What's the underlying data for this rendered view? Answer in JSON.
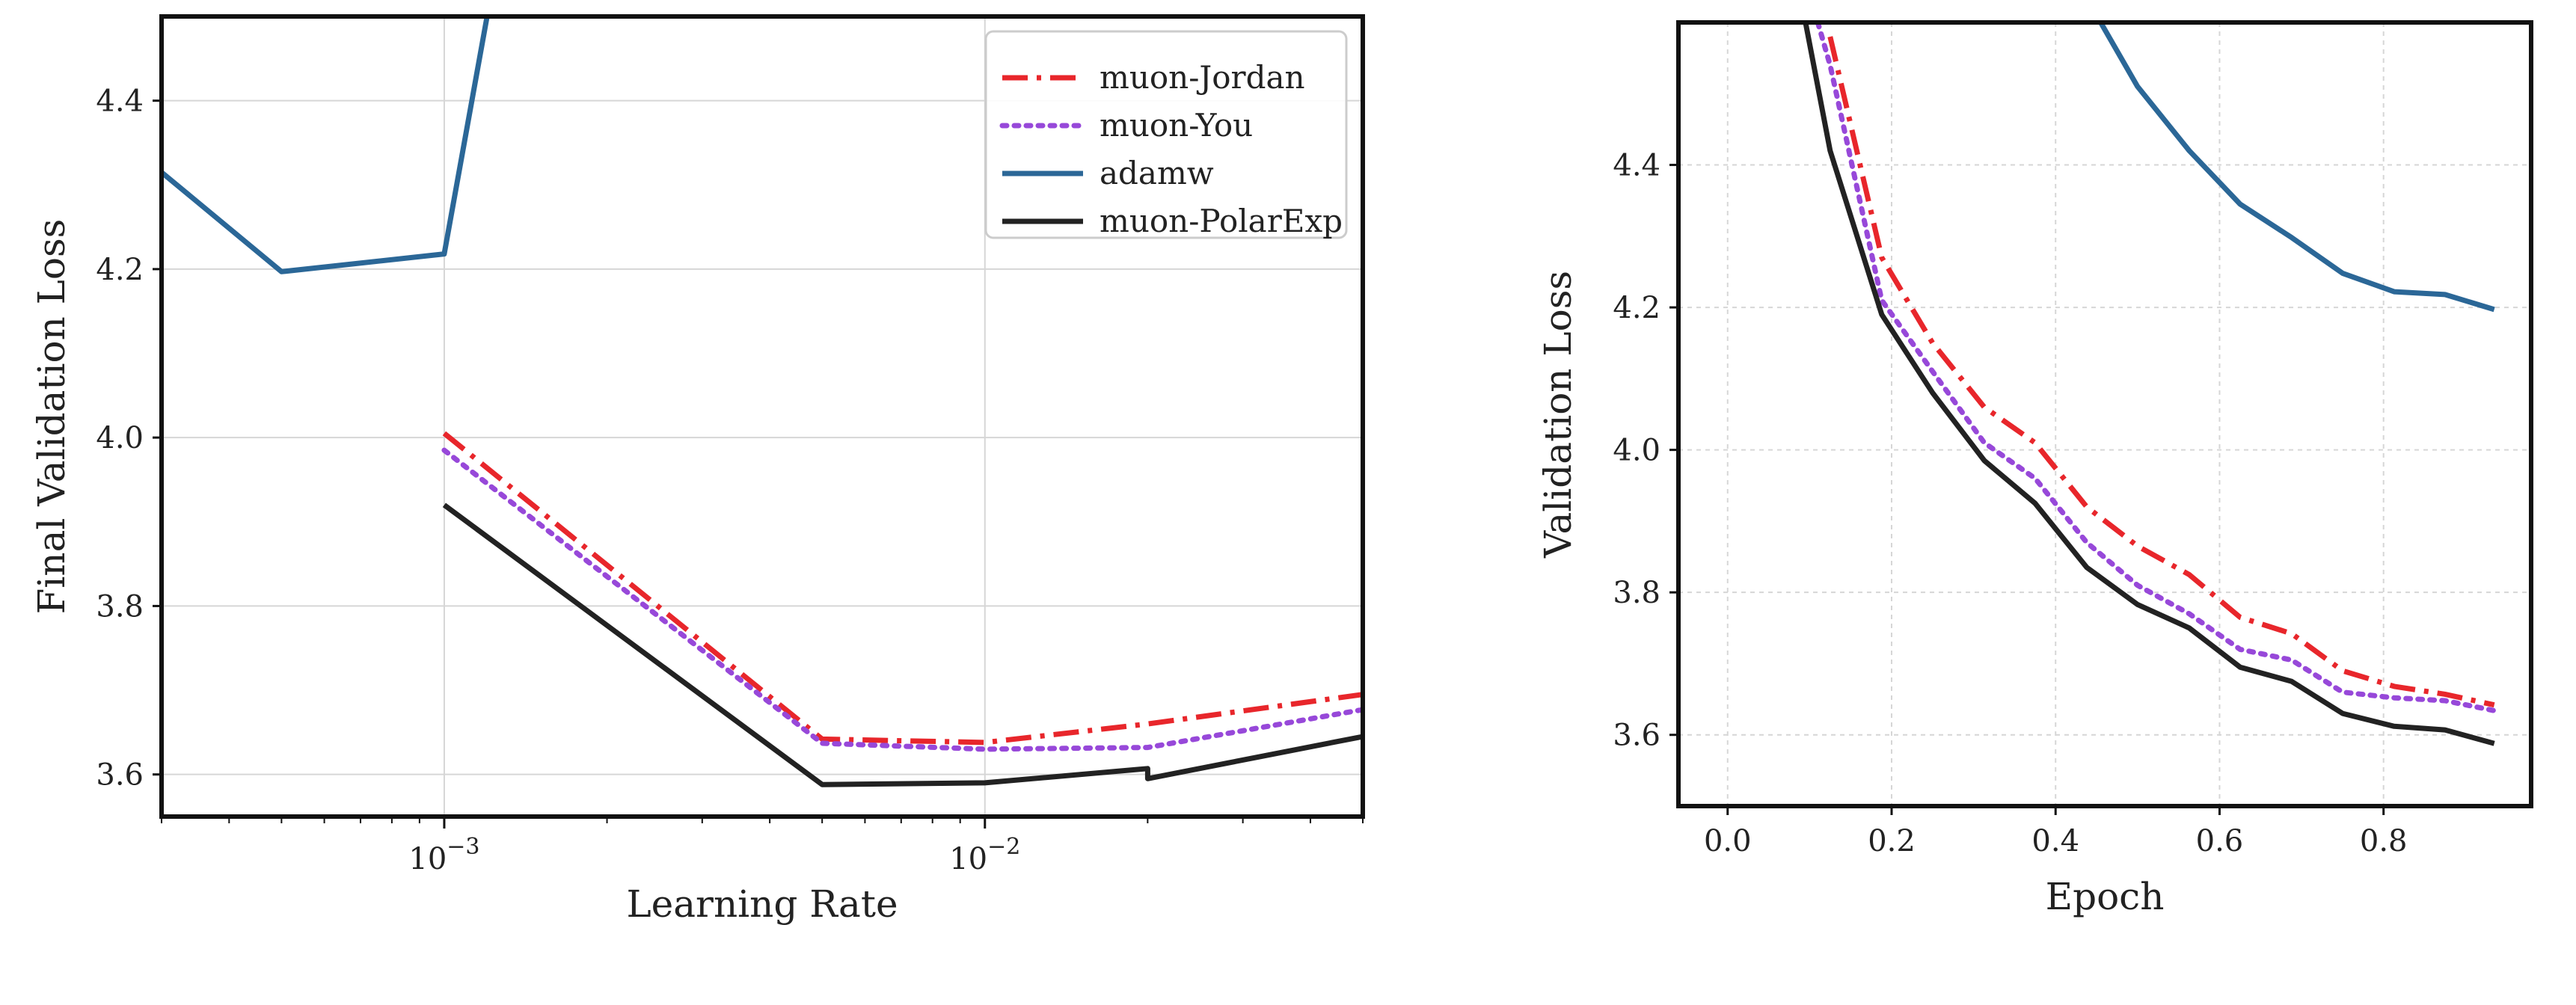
{
  "chart_data": [
    {
      "type": "line",
      "xlabel": "Learning Rate",
      "ylabel": "Final Validation Loss",
      "xscale": "log",
      "xlim": [
        0.0003,
        0.05
      ],
      "ylim": [
        3.55,
        4.5
      ],
      "grid": true,
      "legend_position": "top-right",
      "x_tick_labels": [
        "10^-3",
        "10^-2"
      ],
      "x_ticks": [
        0.001,
        0.01
      ],
      "y_ticks": [
        3.6,
        3.8,
        4.0,
        4.2,
        4.4
      ],
      "y_tick_labels": [
        "3.6",
        "3.8",
        "4.0",
        "4.2",
        "4.4"
      ],
      "series": [
        {
          "name": "muon-Jordan",
          "color": "#e8262b",
          "style": "dashdot",
          "x": [
            0.001,
            0.005,
            0.01,
            0.02,
            0.05
          ],
          "y": [
            4.005,
            3.642,
            3.638,
            3.66,
            3.695
          ]
        },
        {
          "name": "muon-You",
          "color": "#9748d9",
          "style": "dotted",
          "x": [
            0.001,
            0.005,
            0.01,
            0.02,
            0.05
          ],
          "y": [
            3.985,
            3.637,
            3.63,
            3.632,
            3.677
          ]
        },
        {
          "name": "adamw",
          "color": "#2b6797",
          "style": "solid",
          "x": [
            0.0003,
            0.0005,
            0.001,
            0.0012
          ],
          "y": [
            4.315,
            4.197,
            4.218,
            4.5
          ]
        },
        {
          "name": "muon-PolarExp",
          "color": "#222222",
          "style": "solid",
          "x": [
            0.001,
            0.005,
            0.01,
            0.02,
            0.02,
            0.05
          ],
          "y": [
            3.92,
            3.588,
            3.59,
            3.607,
            3.595,
            3.645
          ]
        }
      ]
    },
    {
      "type": "line",
      "xlabel": "Epoch",
      "ylabel": "Validation Loss",
      "xlim": [
        -0.06,
        0.98
      ],
      "ylim": [
        3.5,
        4.6
      ],
      "grid": true,
      "x_ticks": [
        0.0,
        0.2,
        0.4,
        0.6,
        0.8
      ],
      "x_tick_labels": [
        "0.0",
        "0.2",
        "0.4",
        "0.6",
        "0.8"
      ],
      "y_ticks": [
        3.6,
        3.8,
        4.0,
        4.2,
        4.4
      ],
      "y_tick_labels": [
        "3.6",
        "3.8",
        "4.0",
        "4.2",
        "4.4"
      ],
      "series": [
        {
          "name": "muon-Jordan",
          "color": "#e8262b",
          "style": "dashdot",
          "x": [
            0.125,
            0.188,
            0.25,
            0.313,
            0.375,
            0.438,
            0.5,
            0.563,
            0.625,
            0.688,
            0.75,
            0.813,
            0.875,
            0.935
          ],
          "y": [
            4.58,
            4.27,
            4.15,
            4.06,
            4.01,
            3.92,
            3.865,
            3.825,
            3.765,
            3.742,
            3.69,
            3.668,
            3.657,
            3.642
          ]
        },
        {
          "name": "muon-You",
          "color": "#9748d9",
          "style": "dotted",
          "x": [
            0.11,
            0.125,
            0.188,
            0.25,
            0.313,
            0.375,
            0.438,
            0.5,
            0.563,
            0.625,
            0.688,
            0.75,
            0.813,
            0.875,
            0.935
          ],
          "y": [
            4.6,
            4.54,
            4.21,
            4.11,
            4.01,
            3.96,
            3.87,
            3.81,
            3.77,
            3.72,
            3.705,
            3.66,
            3.652,
            3.648,
            3.634
          ]
        },
        {
          "name": "adamw",
          "color": "#2b6797",
          "style": "solid",
          "x": [
            0.455,
            0.5,
            0.563,
            0.625,
            0.688,
            0.75,
            0.813,
            0.875,
            0.935
          ],
          "y": [
            4.6,
            4.51,
            4.42,
            4.345,
            4.298,
            4.248,
            4.222,
            4.218,
            4.197
          ]
        },
        {
          "name": "muon-PolarExp",
          "color": "#222222",
          "style": "solid",
          "x": [
            0.095,
            0.125,
            0.188,
            0.25,
            0.313,
            0.375,
            0.438,
            0.5,
            0.563,
            0.625,
            0.688,
            0.75,
            0.813,
            0.875,
            0.935
          ],
          "y": [
            4.6,
            4.42,
            4.19,
            4.08,
            3.985,
            3.925,
            3.835,
            3.783,
            3.75,
            3.695,
            3.675,
            3.63,
            3.612,
            3.607,
            3.588
          ]
        }
      ]
    }
  ]
}
